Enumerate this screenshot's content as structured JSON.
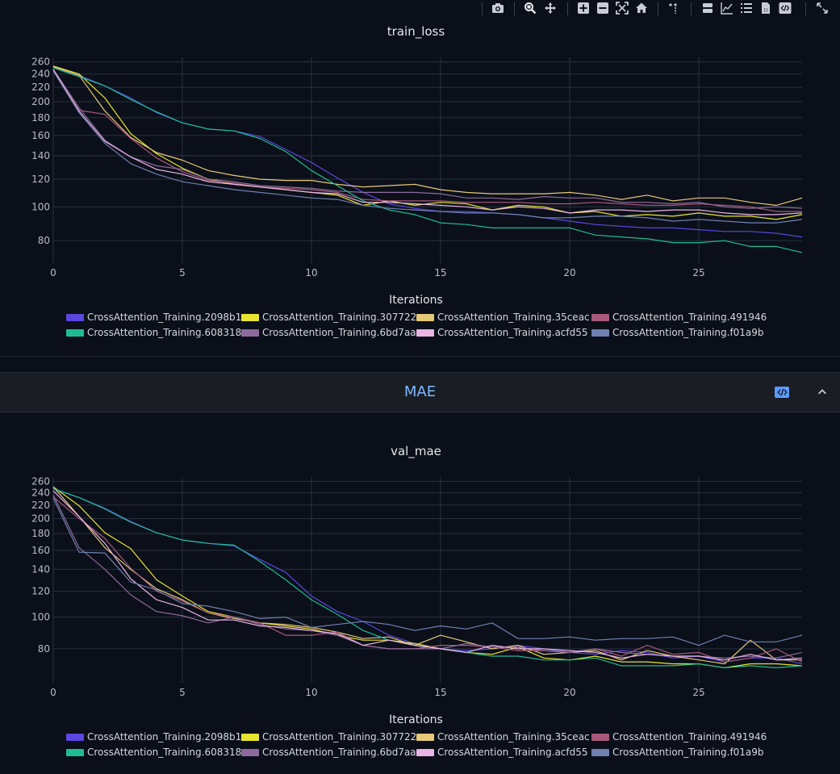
{
  "modebar": {
    "buttons": [
      {
        "name": "camera-icon"
      },
      {
        "name": "zoom-icon"
      },
      {
        "name": "pan-icon"
      },
      {
        "name": "zoom-in-icon"
      },
      {
        "name": "zoom-out-icon"
      },
      {
        "name": "autoscale-icon"
      },
      {
        "name": "reset-axes-icon"
      },
      {
        "name": "spike-lines-icon"
      },
      {
        "name": "hover-closest-icon"
      },
      {
        "name": "hover-compare-icon"
      },
      {
        "name": "list-icon"
      },
      {
        "name": "json-file-icon"
      },
      {
        "name": "code-icon"
      },
      {
        "name": "fullscreen-icon"
      }
    ]
  },
  "section": {
    "title": "MAE"
  },
  "colors": {
    "series": [
      "#5a47e0",
      "#e8e530",
      "#e6c879",
      "#a8597a",
      "#1fbc93",
      "#8e6b9c",
      "#e8b4e4",
      "#6f80b0"
    ]
  },
  "chart_data": [
    {
      "type": "line",
      "title": "train_loss",
      "xlabel": "Iterations",
      "ylabel": "",
      "y_scale": "log",
      "xlim": [
        0,
        29
      ],
      "ylim": [
        69,
        268
      ],
      "x_ticks": [
        0,
        5,
        10,
        15,
        20,
        25
      ],
      "y_ticks": [
        80,
        100,
        120,
        140,
        160,
        180,
        200,
        220,
        240,
        260
      ],
      "x": [
        0,
        1,
        2,
        3,
        4,
        5,
        6,
        7,
        8,
        9,
        10,
        11,
        12,
        13,
        14,
        15,
        16,
        17,
        18,
        19,
        20,
        21,
        22,
        23,
        24,
        25,
        26,
        27,
        28,
        29
      ],
      "series": [
        {
          "name": "CrossAttention_Training.2098b1",
          "values": [
            250,
            238,
            222,
            205,
            186,
            174,
            167,
            165,
            159,
            146,
            134,
            121,
            110,
            102,
            99,
            97,
            97,
            96,
            95,
            93,
            91,
            89,
            88,
            87,
            87,
            86,
            85,
            85,
            84,
            82
          ]
        },
        {
          "name": "CrossAttention_Training.307722",
          "values": [
            253,
            240,
            205,
            162,
            142,
            129,
            120,
            116,
            114,
            112,
            110,
            108,
            101,
            104,
            101,
            103,
            102,
            98,
            101,
            100,
            96,
            97,
            94,
            95,
            94,
            96,
            94,
            94,
            92,
            95
          ]
        },
        {
          "name": "CrossAttention_Training.35ceac",
          "values": [
            252,
            238,
            188,
            158,
            143,
            136,
            127,
            123,
            120,
            119,
            119,
            116,
            114,
            115,
            116,
            112,
            110,
            109,
            109,
            109,
            110,
            108,
            105,
            108,
            104,
            106,
            106,
            103,
            101,
            106
          ]
        },
        {
          "name": "CrossAttention_Training.491946",
          "values": [
            247,
            189,
            184,
            157,
            138,
            126,
            119,
            117,
            114,
            113,
            112,
            110,
            105,
            104,
            104,
            104,
            103,
            103,
            103,
            102,
            102,
            103,
            102,
            101,
            101,
            102,
            101,
            100,
            97,
            97
          ]
        },
        {
          "name": "CrossAttention_Training.608318",
          "values": [
            250,
            236,
            222,
            203,
            187,
            174,
            167,
            165,
            157,
            144,
            127,
            115,
            104,
            98,
            95,
            90,
            89,
            87,
            87,
            87,
            87,
            83,
            82,
            81,
            79,
            79,
            80,
            77,
            77,
            74
          ]
        },
        {
          "name": "CrossAttention_Training.6bd7aa",
          "values": [
            248,
            192,
            155,
            139,
            131,
            128,
            120,
            118,
            115,
            114,
            113,
            111,
            110,
            110,
            110,
            109,
            106,
            106,
            105,
            107,
            106,
            106,
            103,
            103,
            102,
            103,
            100,
            99,
            100,
            99
          ]
        },
        {
          "name": "CrossAttention_Training.acfd55",
          "values": [
            247,
            188,
            154,
            139,
            128,
            124,
            118,
            116,
            114,
            112,
            110,
            109,
            103,
            103,
            102,
            101,
            100,
            98,
            100,
            99,
            96,
            98,
            98,
            97,
            98,
            98,
            96,
            95,
            95,
            96
          ]
        },
        {
          "name": "CrossAttention_Training.f01a9b",
          "values": [
            245,
            186,
            152,
            133,
            124,
            118,
            115,
            112,
            110,
            108,
            106,
            105,
            101,
            99,
            98,
            97,
            96,
            96,
            95,
            93,
            93,
            94,
            94,
            93,
            91,
            92,
            91,
            90,
            90,
            92
          ]
        }
      ]
    },
    {
      "type": "line",
      "title": "val_mae",
      "xlabel": "Iterations",
      "ylabel": "",
      "y_scale": "log",
      "xlim": [
        0,
        29
      ],
      "ylim": [
        63,
        268
      ],
      "x_ticks": [
        0,
        5,
        10,
        15,
        20,
        25
      ],
      "y_ticks": [
        80,
        100,
        120,
        140,
        160,
        180,
        200,
        220,
        240,
        260
      ],
      "x": [
        0,
        1,
        2,
        3,
        4,
        5,
        6,
        7,
        8,
        9,
        10,
        11,
        12,
        13,
        14,
        15,
        16,
        17,
        18,
        19,
        20,
        21,
        22,
        23,
        24,
        25,
        26,
        27,
        28,
        29
      ],
      "series": [
        {
          "name": "CrossAttention_Training.2098b1",
          "values": [
            246,
            232,
            215,
            196,
            181,
            172,
            168,
            165,
            150,
            137,
            116,
            104,
            97,
            88,
            83,
            80,
            79,
            80,
            82,
            80,
            78,
            77,
            79,
            78,
            75,
            76,
            73,
            75,
            75,
            72
          ]
        },
        {
          "name": "CrossAttention_Training.307722",
          "values": [
            250,
            219,
            181,
            162,
            130,
            116,
            104,
            100,
            96,
            94,
            92,
            88,
            85,
            85,
            83,
            80,
            78,
            77,
            81,
            75,
            74,
            76,
            73,
            73,
            72,
            72,
            70,
            72,
            72,
            71
          ]
        },
        {
          "name": "CrossAttention_Training.35ceac",
          "values": [
            250,
            203,
            163,
            140,
            122,
            113,
            103,
            99,
            96,
            95,
            93,
            90,
            86,
            87,
            82,
            88,
            84,
            80,
            82,
            77,
            78,
            79,
            74,
            79,
            76,
            74,
            72,
            85,
            74,
            74
          ]
        },
        {
          "name": "CrossAttention_Training.491946",
          "values": [
            233,
            200,
            174,
            141,
            120,
            112,
            103,
            100,
            96,
            88,
            88,
            90,
            82,
            80,
            80,
            82,
            82,
            81,
            79,
            79,
            78,
            80,
            76,
            82,
            77,
            78,
            73,
            75,
            80,
            73
          ]
        },
        {
          "name": "CrossAttention_Training.608318",
          "values": [
            247,
            232,
            214,
            195,
            181,
            172,
            168,
            166,
            148,
            130,
            113,
            102,
            91,
            85,
            82,
            80,
            78,
            76,
            76,
            74,
            74,
            75,
            71,
            71,
            71,
            72,
            70,
            71,
            70,
            71
          ]
        },
        {
          "name": "CrossAttention_Training.6bd7aa",
          "values": [
            236,
            163,
            140,
            117,
            104,
            101,
            96,
            100,
            95,
            92,
            91,
            88,
            82,
            80,
            80,
            80,
            83,
            81,
            81,
            79,
            78,
            80,
            78,
            77,
            76,
            76,
            75,
            76,
            75,
            78
          ]
        },
        {
          "name": "CrossAttention_Training.acfd55",
          "values": [
            243,
            203,
            168,
            131,
            113,
            107,
            98,
            98,
            94,
            93,
            91,
            89,
            82,
            85,
            82,
            80,
            78,
            82,
            80,
            80,
            79,
            78,
            75,
            77,
            76,
            76,
            74,
            77,
            74,
            75
          ]
        },
        {
          "name": "CrossAttention_Training.f01a9b",
          "values": [
            231,
            158,
            157,
            128,
            121,
            110,
            108,
            104,
            99,
            100,
            93,
            95,
            97,
            95,
            91,
            94,
            92,
            96,
            86,
            86,
            87,
            85,
            86,
            86,
            87,
            82,
            88,
            84,
            84,
            88
          ]
        }
      ]
    }
  ]
}
